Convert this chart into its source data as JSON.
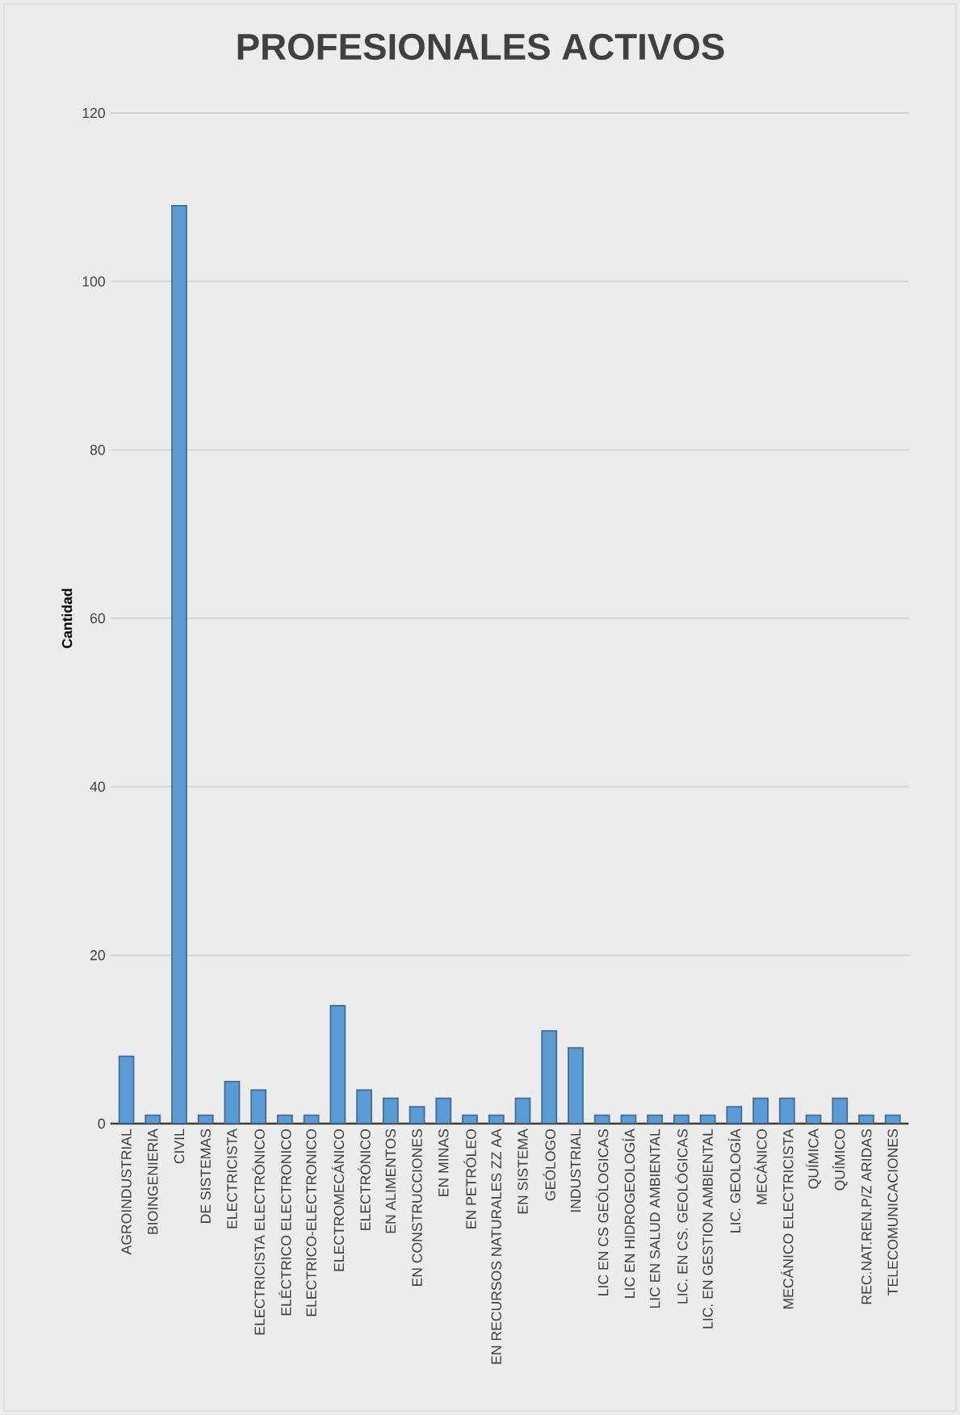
{
  "chart_data": {
    "type": "bar",
    "title": "PROFESIONALES ACTIVOS",
    "ylabel": "Cantidad",
    "categories": [
      "AGROINDUSTRIAL",
      "BIOINGENIERIA",
      "CIVIL",
      "DE SISTEMAS",
      "ELECTRICISTA",
      "ELECTRICISTA ELECTRÓNICO",
      "ELÉCTRICO ELECTRONICO",
      "ELECTRICO-ELECTRONICO",
      "ELECTROMECÁNICO",
      "ELECTRÓNICO",
      "EN ALIMENTOS",
      "EN CONSTRUCCIONES",
      "EN MINAS",
      "EN PETRÓLEO",
      "EN RECURSOS NATURALES ZZ AA",
      "EN SISTEMA",
      "GEÓLOGO",
      "INDUSTRIAL",
      "LIC EN CS GEÓLOGICAS",
      "LIC EN HIDROGEOLOGÍA",
      "LIC EN SALUD AMBIENTAL",
      "LIC.  EN CS. GEOLÓGICAS",
      "LIC. EN GESTION AMBIENTAL",
      "LIC. GEOLOGÍA",
      "MECÁNICO",
      "MECÁNICO ELECTRICISTA",
      "QUÍMICA",
      "QUÍMICO",
      "REC.NAT.REN.P/Z ARIDAS",
      "TELECOMUNICACIONES"
    ],
    "values": [
      8,
      1,
      109,
      1,
      5,
      4,
      1,
      1,
      14,
      4,
      3,
      2,
      3,
      1,
      1,
      3,
      11,
      9,
      1,
      1,
      1,
      1,
      1,
      2,
      3,
      3,
      1,
      3,
      1,
      1
    ],
    "color": "#5b9bd5",
    "ylim": [
      0,
      120
    ],
    "yticks": [
      0,
      20,
      40,
      60,
      80,
      100,
      120
    ],
    "grid": "y"
  }
}
